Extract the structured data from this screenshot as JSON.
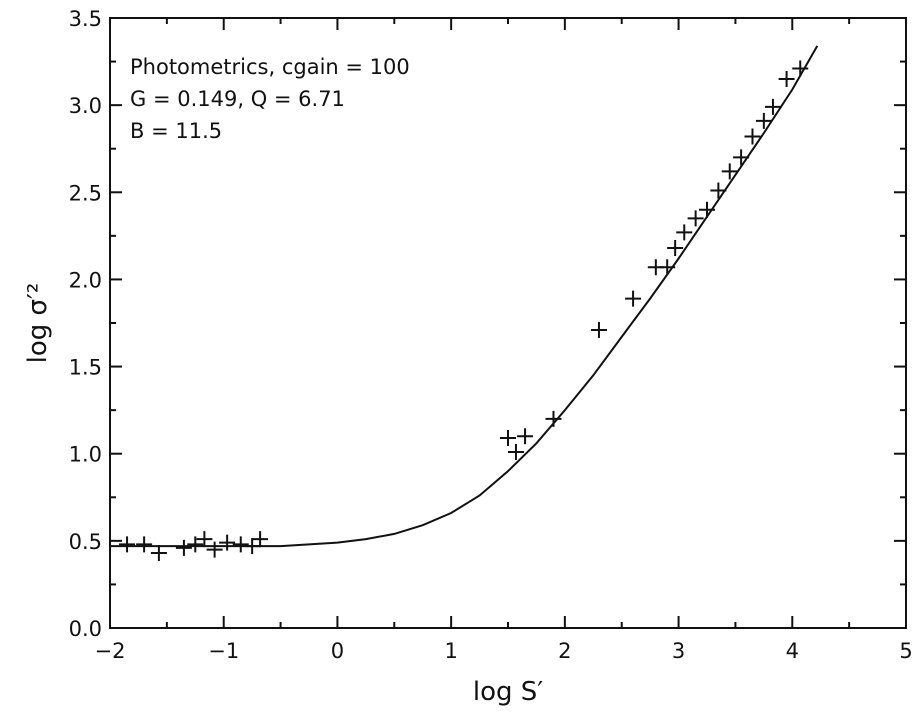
{
  "chart_data": {
    "type": "scatter",
    "xlabel": "log S′",
    "ylabel": "log σ′²",
    "xlim": [
      -2,
      5
    ],
    "ylim": [
      0,
      3.5
    ],
    "xticks": [
      "−2",
      "−1",
      "0",
      "1",
      "2",
      "3",
      "4",
      "5"
    ],
    "yticks": [
      "0.0",
      "0.5",
      "1.0",
      "1.5",
      "2.0",
      "2.5",
      "3.0",
      "3.5"
    ],
    "annotations": [
      "Photometrics, cgain = 100",
      "G = 0.149, Q = 6.71",
      "B = 11.5"
    ],
    "grid": false,
    "series": [
      {
        "marker": "plus",
        "x": [
          -1.85,
          -1.7,
          -1.57,
          -1.35,
          -1.25,
          -1.17,
          -1.08,
          -0.97,
          -0.85,
          -0.75,
          -0.68,
          1.5,
          1.57,
          1.65,
          1.9,
          2.3,
          2.6,
          2.8,
          2.9,
          2.97,
          3.05,
          3.15,
          3.25,
          3.35,
          3.45,
          3.55,
          3.65,
          3.75,
          3.83,
          3.95,
          4.07
        ],
        "y": [
          0.48,
          0.48,
          0.43,
          0.46,
          0.48,
          0.51,
          0.45,
          0.49,
          0.48,
          0.47,
          0.51,
          1.09,
          1.01,
          1.1,
          1.2,
          1.71,
          1.89,
          2.07,
          2.07,
          2.18,
          2.27,
          2.35,
          2.4,
          2.51,
          2.62,
          2.7,
          2.82,
          2.91,
          2.99,
          3.15,
          3.21
        ]
      },
      {
        "marker": "line",
        "x": [
          -2.0,
          -1.5,
          -1.0,
          -0.5,
          0.0,
          0.25,
          0.5,
          0.75,
          1.0,
          1.25,
          1.5,
          1.75,
          2.0,
          2.25,
          2.5,
          2.75,
          3.0,
          3.25,
          3.5,
          3.75,
          4.0,
          4.22
        ],
        "y": [
          0.47,
          0.47,
          0.47,
          0.47,
          0.49,
          0.51,
          0.54,
          0.59,
          0.66,
          0.76,
          0.9,
          1.06,
          1.25,
          1.45,
          1.67,
          1.89,
          2.12,
          2.36,
          2.6,
          2.84,
          3.09,
          3.34
        ]
      }
    ]
  }
}
